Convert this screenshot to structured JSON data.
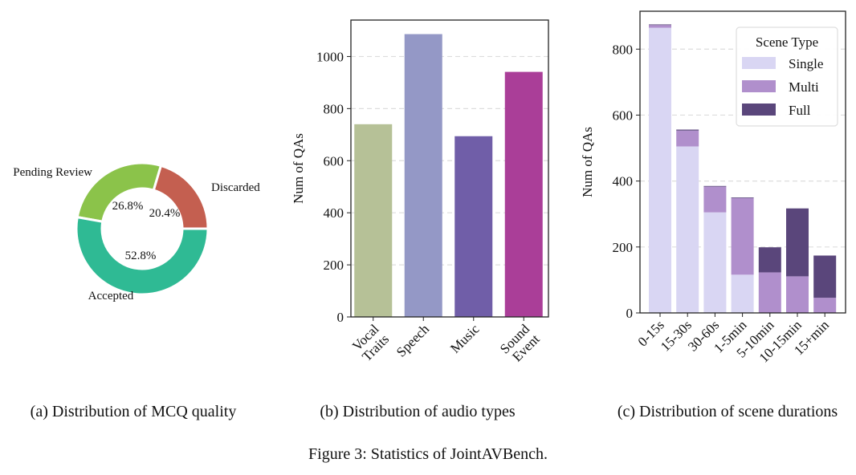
{
  "chart_data": [
    {
      "type": "pie",
      "donut": true,
      "caption": "(a) Distribution of MCQ quality",
      "labels": [
        "Discarded",
        "Pending Review",
        "Accepted"
      ],
      "values": [
        20.4,
        26.8,
        52.8
      ],
      "value_labels": [
        "20.4%",
        "26.8%",
        "52.8%"
      ],
      "colors": [
        "#c45f50",
        "#8bc34a",
        "#2fba94"
      ]
    },
    {
      "type": "bar",
      "caption": "(b) Distribution of audio types",
      "categories": [
        "Vocal\nTraits",
        "Speech",
        "Music",
        "Sound\nEvent"
      ],
      "values": [
        740,
        1086,
        694,
        941
      ],
      "colors": [
        "#b6c197",
        "#9498c6",
        "#705ea8",
        "#aa3e98"
      ],
      "ylabel": "Num of QAs",
      "ylim": [
        0,
        1140
      ],
      "yticks": [
        0,
        200,
        400,
        600,
        800,
        1000
      ],
      "grid": "y dashed"
    },
    {
      "type": "bar",
      "stacked": true,
      "caption": "(c) Distribution of scene durations",
      "categories": [
        "0-15s",
        "15-30s",
        "30-60s",
        "1-5min",
        "5-10min",
        "10-15min",
        "15+min"
      ],
      "series": [
        {
          "name": "Single",
          "color": "#d9d6f3",
          "values": [
            865,
            505,
            305,
            116,
            0,
            0,
            0
          ]
        },
        {
          "name": "Multi",
          "color": "#b08fcc",
          "values": [
            8,
            48,
            78,
            232,
            123,
            111,
            46
          ]
        },
        {
          "name": "Full",
          "color": "#5a467b",
          "values": [
            2,
            3,
            2,
            2,
            76,
            206,
            128
          ]
        }
      ],
      "legend_title": "Scene Type",
      "legend": "top-right",
      "ylabel": "Num of QAs",
      "ylim": [
        0,
        915
      ],
      "yticks": [
        0,
        200,
        400,
        600,
        800
      ],
      "grid": "y dashed"
    }
  ],
  "figure_caption": "Figure 3: Statistics of JointAVBench."
}
